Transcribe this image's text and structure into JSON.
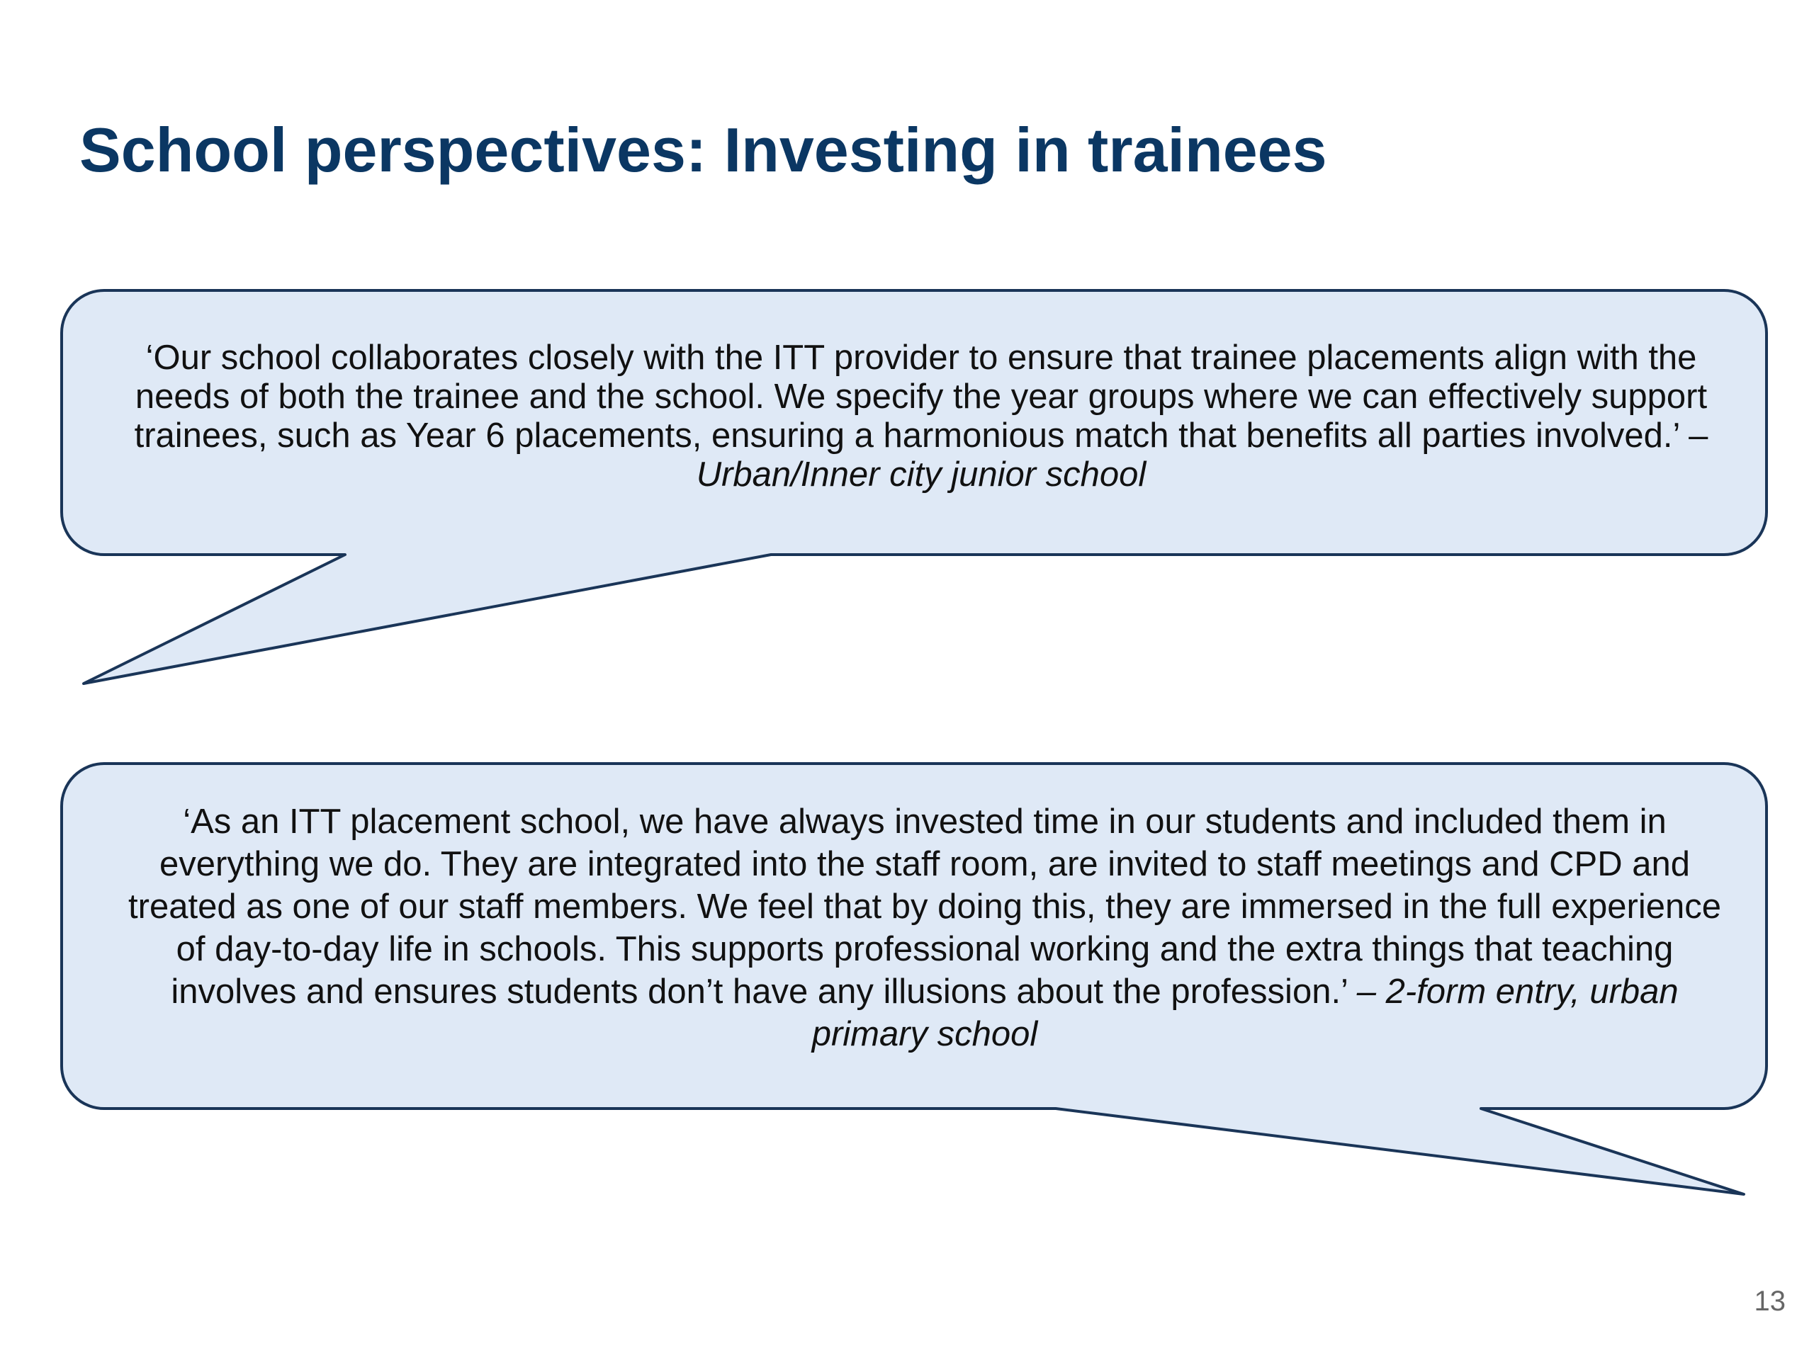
{
  "slide": {
    "title": "School perspectives: Investing in trainees",
    "page_number": "13"
  },
  "quotes": [
    {
      "text": "‘Our school collaborates closely with the ITT provider to ensure that trainee placements align with the needs of both the trainee and the school. We specify the year groups where we can effectively support trainees, such as Year 6 placements, ensuring a harmonious match that benefits all parties involved.’ –",
      "attribution": "Urban/Inner city junior school"
    },
    {
      "text": "‘As an ITT placement school, we have always invested time in our students and included them in everything we do. They are integrated into the staff room, are invited to staff meetings and CPD and treated as one of our staff members. We feel that by doing this, they are immersed in the full experience of day-to-day life in schools. This supports professional working and the extra things that teaching involves and ensures students don’t have any illusions about the profession.’",
      "attribution": "– 2-form entry, urban primary school"
    }
  ],
  "colors": {
    "title": "#0b3763",
    "bubble_fill": "#dfe9f6",
    "bubble_stroke": "#1a3558"
  }
}
